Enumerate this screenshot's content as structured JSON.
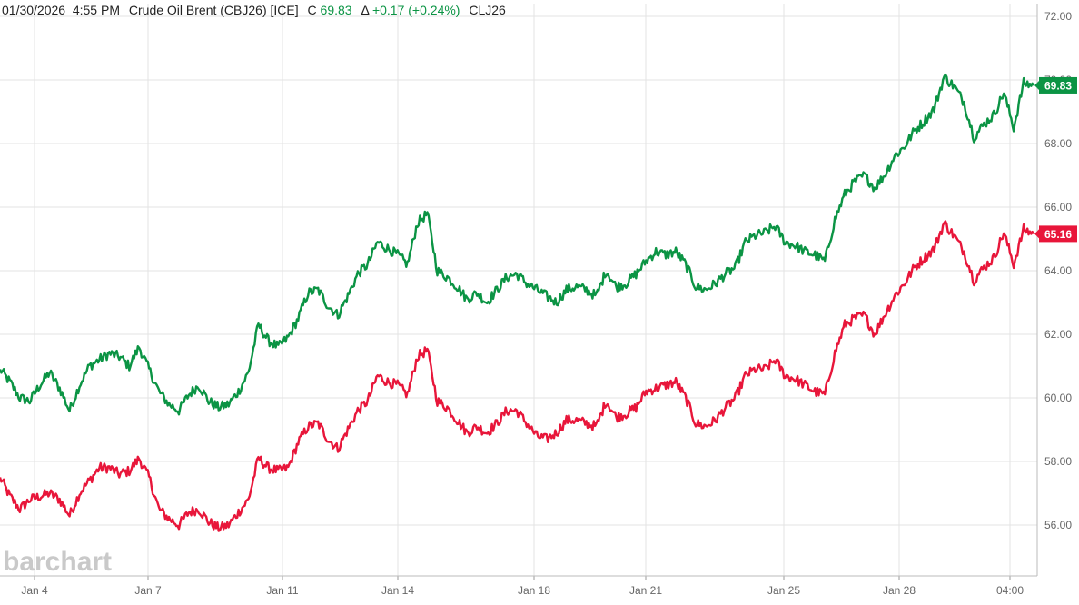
{
  "header": {
    "datetime": "01/30/2026  4:55 PM",
    "symbol_name": "Crude Oil Brent (CBJ26) [ICE]",
    "close_prefix": "C",
    "close_value": "69.83",
    "change_prefix": "Δ",
    "change_value": "+0.17 (+0.24%)",
    "compare_symbol": "CLJ26"
  },
  "logo_text": "barchart",
  "colors": {
    "green": "#0b9444",
    "red": "#e8163a",
    "grid": "#e3e3e3",
    "axis_text": "#666666",
    "logo": "#c9c9c9"
  },
  "chart_data": {
    "type": "line",
    "ylim": [
      54.5,
      72.4
    ],
    "y_ticks": [
      "56.00",
      "58.00",
      "60.00",
      "62.00",
      "64.00",
      "66.00",
      "68.00",
      "70.00",
      "72.00"
    ],
    "x_ticks": [
      "Jan 4",
      "Jan 7",
      "Jan 11",
      "Jan 14",
      "Jan 18",
      "Jan 21",
      "Jan 25",
      "Jan 28",
      "04:00"
    ],
    "series": [
      {
        "name": "CBJ26",
        "color": "#0b9444",
        "last_label": "69.83",
        "values": [
          60.9,
          60.5,
          60.0,
          59.9,
          60.4,
          60.8,
          60.3,
          59.6,
          60.4,
          61.0,
          61.2,
          61.4,
          61.3,
          61.0,
          61.6,
          60.9,
          60.2,
          59.8,
          59.6,
          60.1,
          60.4,
          59.9,
          59.7,
          59.8,
          60.2,
          60.8,
          62.3,
          61.8,
          61.6,
          61.9,
          62.5,
          63.3,
          63.4,
          62.9,
          62.6,
          63.2,
          63.9,
          64.2,
          64.9,
          64.7,
          64.5,
          64.2,
          65.5,
          65.8,
          64.0,
          63.8,
          63.5,
          63.1,
          63.3,
          63.0,
          63.4,
          63.8,
          63.9,
          63.6,
          63.4,
          63.2,
          63.0,
          63.4,
          63.5,
          63.4,
          63.2,
          64.0,
          63.5,
          63.6,
          63.9,
          64.3,
          64.6,
          64.5,
          64.6,
          64.2,
          63.5,
          63.4,
          63.6,
          63.9,
          64.1,
          64.9,
          65.1,
          65.2,
          65.4,
          64.9,
          64.8,
          64.6,
          64.5,
          64.3,
          65.6,
          66.4,
          66.8,
          67.0,
          66.6,
          67.0,
          67.6,
          67.9,
          68.4,
          68.7,
          69.1,
          70.1,
          69.8,
          69.3,
          68.2,
          68.6,
          68.9,
          69.6,
          68.5,
          69.9,
          69.83
        ]
      },
      {
        "name": "CLJ26",
        "color": "#e8163a",
        "last_label": "65.16",
        "values": [
          57.5,
          56.9,
          56.5,
          56.8,
          56.9,
          57.0,
          56.8,
          56.3,
          57.0,
          57.4,
          57.8,
          57.8,
          57.6,
          57.7,
          58.1,
          57.5,
          56.5,
          56.2,
          56.0,
          56.4,
          56.5,
          56.1,
          55.9,
          56.0,
          56.4,
          56.8,
          58.1,
          57.8,
          57.7,
          57.8,
          58.6,
          59.1,
          59.2,
          58.7,
          58.4,
          59.0,
          59.6,
          59.9,
          60.7,
          60.5,
          60.4,
          60.1,
          61.3,
          61.5,
          59.9,
          59.7,
          59.3,
          58.9,
          59.1,
          58.9,
          59.2,
          59.6,
          59.6,
          59.2,
          58.8,
          58.7,
          58.9,
          59.3,
          59.3,
          59.2,
          59.1,
          59.9,
          59.4,
          59.5,
          59.7,
          60.2,
          60.3,
          60.4,
          60.5,
          60.0,
          59.2,
          59.1,
          59.3,
          59.7,
          60.0,
          60.7,
          60.9,
          60.9,
          61.2,
          60.7,
          60.6,
          60.4,
          60.2,
          60.1,
          61.4,
          62.3,
          62.5,
          62.6,
          62.0,
          62.6,
          63.2,
          63.6,
          64.1,
          64.4,
          64.7,
          65.5,
          65.1,
          64.6,
          63.7,
          64.1,
          64.4,
          65.2,
          64.2,
          65.3,
          65.16
        ]
      }
    ]
  }
}
